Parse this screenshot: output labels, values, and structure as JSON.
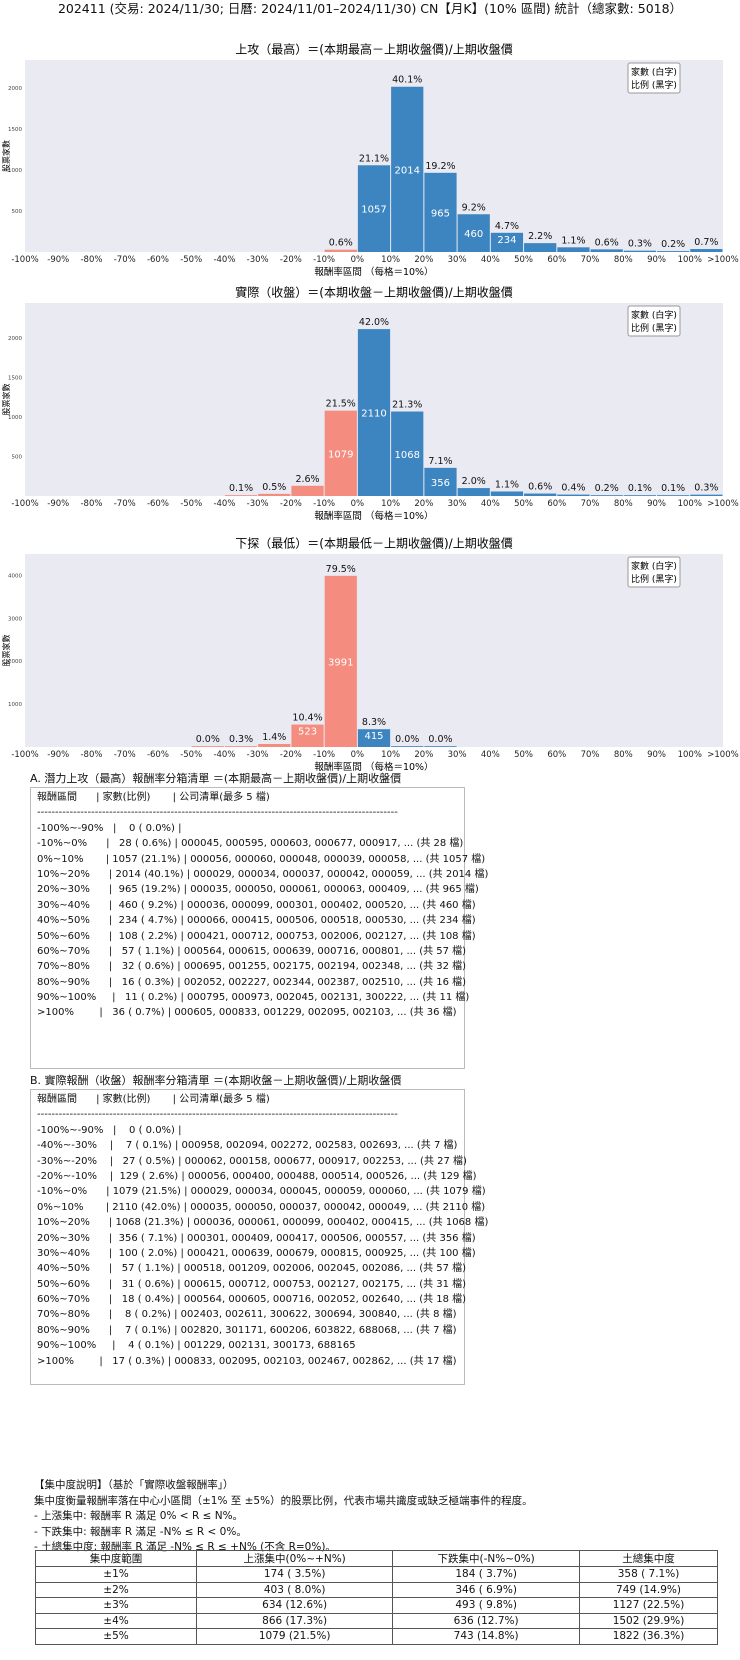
{
  "title": "202411 (交易: 2024/11/30; 日曆: 2024/11/01–2024/11/30) CN【月K】(10% 區間) 統計（總家數: 5018）",
  "colors": {
    "up": "#3d85c0",
    "down": "#f48c80",
    "plot_bg": "#eaeaf2"
  },
  "chart_data": [
    {
      "type": "bar",
      "title": "上攻（最高）＝(本期最高－上期收盤價)/上期收盤價",
      "xlabel": "報酬率區間 （每格＝10%）",
      "ylabel": "股票家數",
      "legend_lines": [
        "家數 (白字)",
        "比例 (黑字)"
      ],
      "legend_position": "top-right",
      "ylim": [
        0,
        2340
      ],
      "yticks": [
        500,
        1000,
        1500,
        2000
      ],
      "xtick_labels": [
        "-100%",
        "-90%",
        "-80%",
        "-70%",
        "-60%",
        "-50%",
        "-40%",
        "-30%",
        "-20%",
        "-10%",
        "0%",
        "10%",
        "20%",
        "30%",
        "40%",
        "50%",
        "60%",
        "70%",
        "80%",
        "90%",
        "100%",
        ">100%"
      ],
      "bars": [
        {
          "start": -10,
          "count": 28,
          "pct": "0.6%",
          "sign": "neg"
        },
        {
          "start": 0,
          "count": 1057,
          "pct": "21.1%",
          "sign": "pos"
        },
        {
          "start": 10,
          "count": 2014,
          "pct": "40.1%",
          "sign": "pos"
        },
        {
          "start": 20,
          "count": 965,
          "pct": "19.2%",
          "sign": "pos"
        },
        {
          "start": 30,
          "count": 460,
          "pct": "9.2%",
          "sign": "pos"
        },
        {
          "start": 40,
          "count": 234,
          "pct": "4.7%",
          "sign": "pos"
        },
        {
          "start": 50,
          "count": 108,
          "pct": "2.2%",
          "sign": "pos"
        },
        {
          "start": 60,
          "count": 57,
          "pct": "1.1%",
          "sign": "pos"
        },
        {
          "start": 70,
          "count": 32,
          "pct": "0.6%",
          "sign": "pos"
        },
        {
          "start": 80,
          "count": 16,
          "pct": "0.3%",
          "sign": "pos"
        },
        {
          "start": 90,
          "count": 11,
          "pct": "0.2%",
          "sign": "pos"
        },
        {
          "start": 100,
          "count": 36,
          "pct": "0.7%",
          "sign": "pos"
        }
      ]
    },
    {
      "type": "bar",
      "title": "實際（收盤）＝(本期收盤－上期收盤價)/上期收盤價",
      "xlabel": "報酬率區間 （每格＝10%）",
      "ylabel": "股票家數",
      "legend_lines": [
        "家數 (白字)",
        "比例 (黑字)"
      ],
      "legend_position": "top-right",
      "ylim": [
        0,
        2440
      ],
      "yticks": [
        500,
        1000,
        1500,
        2000
      ],
      "xtick_labels": [
        "-100%",
        "-90%",
        "-80%",
        "-70%",
        "-60%",
        "-50%",
        "-40%",
        "-30%",
        "-20%",
        "-10%",
        "0%",
        "10%",
        "20%",
        "30%",
        "40%",
        "50%",
        "60%",
        "70%",
        "80%",
        "90%",
        "100%",
        ">100%"
      ],
      "bars": [
        {
          "start": -40,
          "count": 7,
          "pct": "0.1%",
          "sign": "neg"
        },
        {
          "start": -30,
          "count": 27,
          "pct": "0.5%",
          "sign": "neg"
        },
        {
          "start": -20,
          "count": 129,
          "pct": "2.6%",
          "sign": "neg"
        },
        {
          "start": -10,
          "count": 1079,
          "pct": "21.5%",
          "sign": "neg"
        },
        {
          "start": 0,
          "count": 2110,
          "pct": "42.0%",
          "sign": "pos"
        },
        {
          "start": 10,
          "count": 1068,
          "pct": "21.3%",
          "sign": "pos"
        },
        {
          "start": 20,
          "count": 356,
          "pct": "7.1%",
          "sign": "pos"
        },
        {
          "start": 30,
          "count": 100,
          "pct": "2.0%",
          "sign": "pos"
        },
        {
          "start": 40,
          "count": 57,
          "pct": "1.1%",
          "sign": "pos"
        },
        {
          "start": 50,
          "count": 31,
          "pct": "0.6%",
          "sign": "pos"
        },
        {
          "start": 60,
          "count": 18,
          "pct": "0.4%",
          "sign": "pos"
        },
        {
          "start": 70,
          "count": 8,
          "pct": "0.2%",
          "sign": "pos"
        },
        {
          "start": 80,
          "count": 7,
          "pct": "0.1%",
          "sign": "pos"
        },
        {
          "start": 90,
          "count": 4,
          "pct": "0.1%",
          "sign": "pos"
        },
        {
          "start": 100,
          "count": 17,
          "pct": "0.3%",
          "sign": "pos"
        }
      ]
    },
    {
      "type": "bar",
      "title": "下探（最低）＝(本期最低－上期收盤價)/上期收盤價",
      "xlabel": "報酬率區間 （每格＝10%）",
      "ylabel": "股票家數",
      "legend_lines": [
        "家數 (白字)",
        "比例 (黑字)"
      ],
      "legend_position": "top-right",
      "ylim": [
        0,
        4500
      ],
      "yticks": [
        1000,
        2000,
        3000,
        4000
      ],
      "xtick_labels": [
        "-100%",
        "-90%",
        "-80%",
        "-70%",
        "-60%",
        "-50%",
        "-40%",
        "-30%",
        "-20%",
        "-10%",
        "0%",
        "10%",
        "20%",
        "30%",
        "40%",
        "50%",
        "60%",
        "70%",
        "80%",
        "90%",
        "100%",
        ">100%"
      ],
      "bars": [
        {
          "start": -50,
          "count": 2,
          "pct": "0.0%",
          "sign": "neg"
        },
        {
          "start": -40,
          "count": 14,
          "pct": "0.3%",
          "sign": "neg"
        },
        {
          "start": -30,
          "count": 70,
          "pct": "1.4%",
          "sign": "neg"
        },
        {
          "start": -20,
          "count": 523,
          "pct": "10.4%",
          "sign": "neg"
        },
        {
          "start": -10,
          "count": 3991,
          "pct": "79.5%",
          "sign": "neg"
        },
        {
          "start": 0,
          "count": 415,
          "pct": "8.3%",
          "sign": "pos"
        },
        {
          "start": 10,
          "count": 2,
          "pct": "0.0%",
          "sign": "pos"
        },
        {
          "start": 20,
          "count": 1,
          "pct": "0.0%",
          "sign": "pos"
        }
      ]
    }
  ],
  "section_a": {
    "title": "A. 潛力上攻（最高）報酬率分箱清單 ＝(本期最高－上期收盤價)/上期收盤價",
    "rows": [
      "報酬區間      | 家數(比例)       | 公司清單(最多 5 檔)",
      "----------------------------------------------------------------------------------------------------",
      "-100%~-90%   |    0 ( 0.0%) |",
      "-10%~0%      |   28 ( 0.6%) | 000045, 000595, 000603, 000677, 000917, ... (共 28 檔)",
      "0%~10%       | 1057 (21.1%) | 000056, 000060, 000048, 000039, 000058, ... (共 1057 檔)",
      "10%~20%      | 2014 (40.1%) | 000029, 000034, 000037, 000042, 000059, ... (共 2014 檔)",
      "20%~30%      |  965 (19.2%) | 000035, 000050, 000061, 000063, 000409, ... (共 965 檔)",
      "30%~40%      |  460 ( 9.2%) | 000036, 000099, 000301, 000402, 000520, ... (共 460 檔)",
      "40%~50%      |  234 ( 4.7%) | 000066, 000415, 000506, 000518, 000530, ... (共 234 檔)",
      "50%~60%      |  108 ( 2.2%) | 000421, 000712, 000753, 002006, 002127, ... (共 108 檔)",
      "60%~70%      |   57 ( 1.1%) | 000564, 000615, 000639, 000716, 000801, ... (共 57 檔)",
      "70%~80%      |   32 ( 0.6%) | 000695, 001255, 002175, 002194, 002348, ... (共 32 檔)",
      "80%~90%      |   16 ( 0.3%) | 002052, 002227, 002344, 002387, 002510, ... (共 16 檔)",
      "90%~100%     |   11 ( 0.2%) | 000795, 000973, 002045, 002131, 300222, ... (共 11 檔)",
      ">100%        |   36 ( 0.7%) | 000605, 000833, 001229, 002095, 002103, ... (共 36 檔)"
    ]
  },
  "section_b": {
    "title": "B. 實際報酬（收盤）報酬率分箱清單 ＝(本期收盤－上期收盤價)/上期收盤價",
    "rows": [
      "報酬區間      | 家數(比例)       | 公司清單(最多 5 檔)",
      "----------------------------------------------------------------------------------------------------",
      "-100%~-90%   |    0 ( 0.0%) |",
      "-40%~-30%    |    7 ( 0.1%) | 000958, 002094, 002272, 002583, 002693, ... (共 7 檔)",
      "-30%~-20%    |   27 ( 0.5%) | 000062, 000158, 000677, 000917, 002253, ... (共 27 檔)",
      "-20%~-10%    |  129 ( 2.6%) | 000056, 000400, 000488, 000514, 000526, ... (共 129 檔)",
      "-10%~0%      | 1079 (21.5%) | 000029, 000034, 000045, 000059, 000060, ... (共 1079 檔)",
      "0%~10%       | 2110 (42.0%) | 000035, 000050, 000037, 000042, 000049, ... (共 2110 檔)",
      "10%~20%      | 1068 (21.3%) | 000036, 000061, 000099, 000402, 000415, ... (共 1068 檔)",
      "20%~30%      |  356 ( 7.1%) | 000301, 000409, 000417, 000506, 000557, ... (共 356 檔)",
      "30%~40%      |  100 ( 2.0%) | 000421, 000639, 000679, 000815, 000925, ... (共 100 檔)",
      "40%~50%      |   57 ( 1.1%) | 000518, 001209, 002006, 002045, 002086, ... (共 57 檔)",
      "50%~60%      |   31 ( 0.6%) | 000615, 000712, 000753, 002127, 002175, ... (共 31 檔)",
      "60%~70%      |   18 ( 0.4%) | 000564, 000605, 000716, 002052, 002640, ... (共 18 檔)",
      "70%~80%      |    8 ( 0.2%) | 002403, 002611, 300622, 300694, 300840, ... (共 8 檔)",
      "80%~90%      |    7 ( 0.1%) | 002820, 301171, 600206, 603822, 688068, ... (共 7 檔)",
      "90%~100%     |    4 ( 0.1%) | 001229, 002131, 300173, 688165",
      ">100%        |   17 ( 0.3%) | 000833, 002095, 002103, 002467, 002862, ... (共 17 檔)"
    ]
  },
  "concentration": {
    "heading": "【集中度說明】（基於「實際收盤報酬率」）",
    "lines": [
      "集中度衡量報酬率落在中心小區間（±1% 至 ±5%）的股票比例，代表市場共識度或缺乏極端事件的程度。",
      " - 上漲集中: 報酬率 R 滿足 0% < R ≤ N%。",
      " - 下跌集中: 報酬率 R 滿足 -N% ≤ R < 0%。",
      " - 土總集中度: 報酬率 R 滿足 -N% ≤ R ≤ +N% (不含 R=0%)。"
    ],
    "headers": [
      "集中度範圍",
      "上漲集中(0%~+N%)",
      "下跌集中(-N%~0%)",
      "土總集中度"
    ],
    "rows": [
      [
        "±1%",
        "174 ( 3.5%)",
        "184 ( 3.7%)",
        "358 ( 7.1%)"
      ],
      [
        "±2%",
        "403 ( 8.0%)",
        "346 ( 6.9%)",
        "749 (14.9%)"
      ],
      [
        "±3%",
        "634 (12.6%)",
        "493 ( 9.8%)",
        "1127 (22.5%)"
      ],
      [
        "±4%",
        "866 (17.3%)",
        "636 (12.7%)",
        "1502 (29.9%)"
      ],
      [
        "±5%",
        "1079 (21.5%)",
        "743 (14.8%)",
        "1822 (36.3%)"
      ]
    ]
  }
}
